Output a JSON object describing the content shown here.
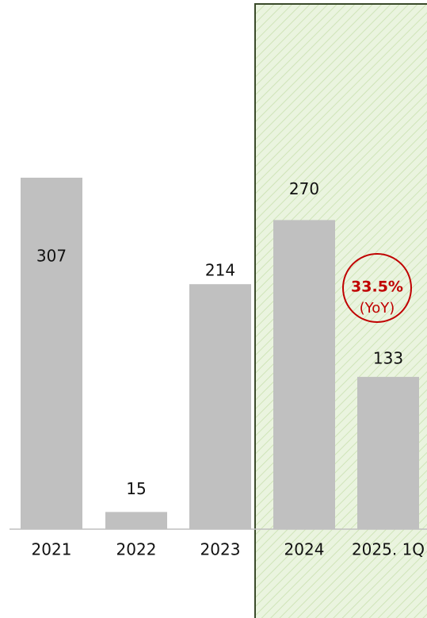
{
  "chart_data": {
    "type": "bar",
    "categories": [
      "2021",
      "2022",
      "2023",
      "2024",
      "2025. 1Q"
    ],
    "values": [
      307,
      15,
      214,
      270,
      133
    ],
    "color": "#c0c0c0",
    "annotation": {
      "value": "33.5%",
      "note": "(YoY)",
      "color": "#c00000"
    }
  }
}
